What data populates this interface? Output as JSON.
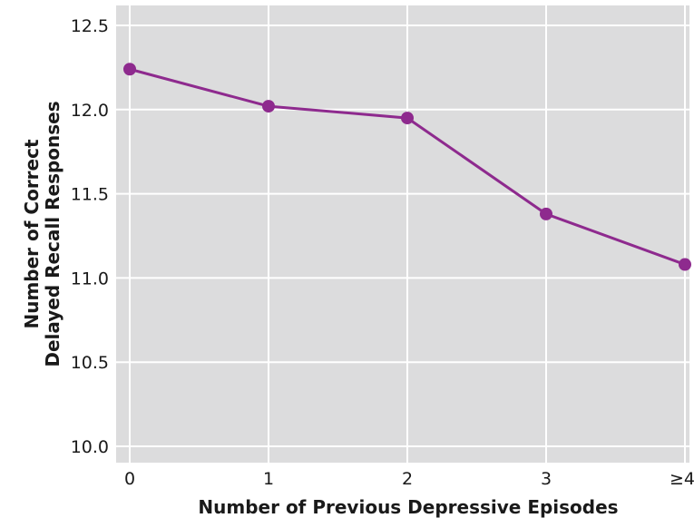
{
  "chart_data": {
    "type": "line",
    "title": "",
    "xlabel": "Number of Previous Depressive Episodes",
    "ylabel_lines": [
      "Number of Correct",
      "Delayed Recall Responses"
    ],
    "categories": [
      "0",
      "1",
      "2",
      "3",
      "≥4"
    ],
    "series": [
      {
        "values": [
          12.24,
          12.02,
          11.95,
          11.38,
          11.08
        ],
        "color": "#8e2a8e"
      }
    ],
    "ylim": [
      10.0,
      12.5
    ],
    "yticks": [
      "10.0",
      "10.5",
      "11.0",
      "11.5",
      "12.0",
      "12.5"
    ],
    "grid": true,
    "plot_background": "#dcdcdd",
    "grid_color": "#ffffff"
  }
}
